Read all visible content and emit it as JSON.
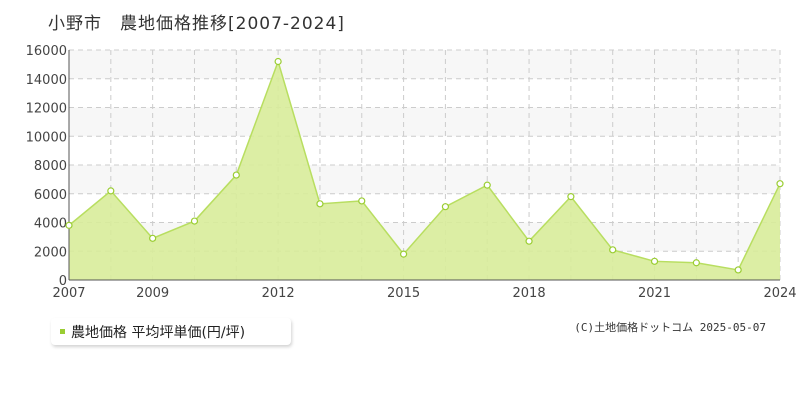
{
  "header": {
    "title": "小野市　農地価格推移[2007-2024]"
  },
  "legend": {
    "label": "農地価格 平均坪単価(円/坪)"
  },
  "credit": {
    "text": "(C)土地価格ドットコム 2025-05-07"
  },
  "colors": {
    "area_fill": "#d8ec9a",
    "line": "#b8de60",
    "marker": "#9acd32",
    "band": "#f7f7f7",
    "grid": "#cccccc"
  },
  "chart_data": {
    "type": "area",
    "x": [
      2007,
      2008,
      2009,
      2010,
      2011,
      2012,
      2013,
      2014,
      2015,
      2016,
      2017,
      2018,
      2019,
      2020,
      2021,
      2022,
      2023,
      2024
    ],
    "series": [
      {
        "name": "農地価格 平均坪単価(円/坪)",
        "values": [
          3800,
          6200,
          2900,
          4100,
          7300,
          15200,
          5300,
          5500,
          1800,
          5100,
          6600,
          2700,
          5800,
          2100,
          1300,
          1200,
          700,
          6700
        ]
      }
    ],
    "xticks": [
      2007,
      2009,
      2012,
      2015,
      2018,
      2021,
      2024
    ],
    "yticks": [
      0,
      2000,
      4000,
      6000,
      8000,
      10000,
      12000,
      14000,
      16000
    ],
    "xlim": [
      2007,
      2024
    ],
    "ylim": [
      0,
      16000
    ],
    "grid": true,
    "legend_position": "bottom-left"
  }
}
